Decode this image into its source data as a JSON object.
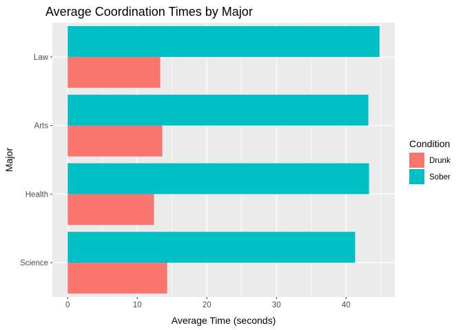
{
  "chart_data": {
    "type": "bar",
    "orientation": "horizontal",
    "title": "Average Coordination Times by Major",
    "xlabel": "Average Time (seconds)",
    "ylabel": "Major",
    "categories": [
      "Law",
      "Arts",
      "Health",
      "Science"
    ],
    "series": [
      {
        "name": "Drunk",
        "color": "#F8766D",
        "values": [
          13.3,
          13.6,
          12.4,
          14.3
        ]
      },
      {
        "name": "Sober",
        "color": "#00BFC4",
        "values": [
          44.8,
          43.2,
          43.3,
          41.3
        ]
      }
    ],
    "xlim": [
      -2.2,
      47.0
    ],
    "xticks": [
      0,
      10,
      20,
      30,
      40
    ],
    "grid": true,
    "legend": {
      "title": "Condition",
      "position": "right"
    },
    "panel_background": "#EBEBEB",
    "grid_color": "#FFFFFF"
  }
}
